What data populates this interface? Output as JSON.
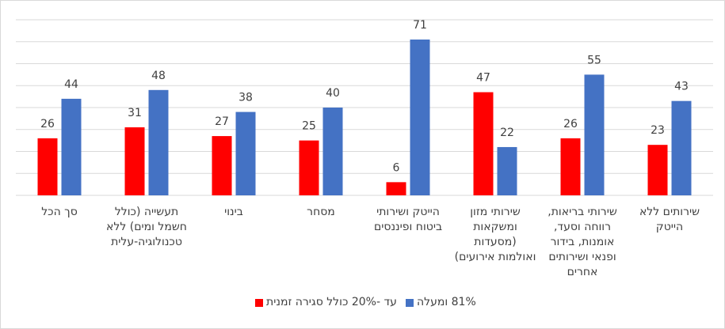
{
  "chart_data": {
    "type": "bar",
    "categories": [
      "סך הכל",
      "תעשייה (כולל חשמל ומים) ללא טכנולוגיה-עלית",
      "בינוי",
      "מסחר",
      "הייטק ושירותי ביטוח ופיננסים",
      "שירותי מזון ומשקאות (מסעדות ואולמות אירועים)",
      "שירותי בריאות, רווחה וסעד, אומנות, בידור ופנאי ושירותים אחרים",
      "שירותים ללא הייטק"
    ],
    "series": [
      {
        "name": "עד -20% כולל סגירה זמנית",
        "color": "#ff0000",
        "values": [
          26,
          31,
          27,
          25,
          6,
          47,
          26,
          23
        ]
      },
      {
        "name": "81% ומעלה",
        "color": "#4472c4",
        "values": [
          44,
          48,
          38,
          40,
          71,
          22,
          55,
          43
        ]
      }
    ],
    "ylim": [
      0,
      80
    ],
    "yticks": [
      0,
      10,
      20,
      30,
      40,
      50,
      60,
      70,
      80
    ],
    "grid": true
  }
}
